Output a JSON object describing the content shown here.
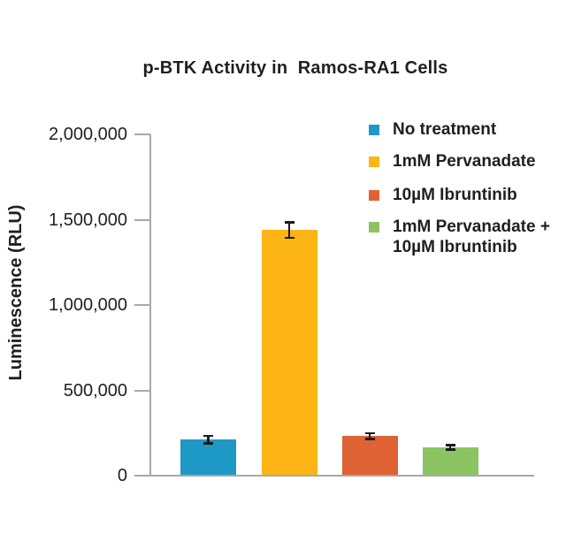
{
  "chart_data": {
    "type": "bar",
    "title": "p-BTK Activity in  Ramos-RA1 Cells",
    "xlabel": "",
    "ylabel": "Luminescence (RLU)",
    "categories": [
      "No treatment",
      "1mM Pervanadate",
      "10µM Ibruntinib",
      "1mM Pervanadate + 10µM Ibruntinib"
    ],
    "values": [
      210000,
      1440000,
      232000,
      165000
    ],
    "errors": [
      22000,
      45000,
      18000,
      13000
    ],
    "bar_colors": [
      "#1E98C5",
      "#FCB514",
      "#DE6234",
      "#8CC363"
    ],
    "ylim": [
      0,
      2000000
    ],
    "yticks": [
      0,
      500000,
      1000000,
      1500000,
      2000000
    ],
    "ytick_labels": [
      "0",
      "500,000",
      "1,000,000",
      "1,500,000",
      "2,000,000"
    ],
    "grid": false,
    "x_tick_labels_shown": false,
    "legend_position": "upper right",
    "legend": [
      {
        "label": "No treatment",
        "color": "#1E98C5"
      },
      {
        "label": "1mM Pervanadate",
        "color": "#FCB514"
      },
      {
        "label": "10µM Ibruntinib",
        "color": "#DE6234"
      },
      {
        "label": "1mM Pervanadate + 10µM Ibruntinib",
        "color": "#8CC363"
      }
    ]
  },
  "colors": {
    "background": "#FFFFFF",
    "axis": "#A8A8A8",
    "text": "#1F1F1F",
    "error_bar": "#1A1A1A"
  }
}
